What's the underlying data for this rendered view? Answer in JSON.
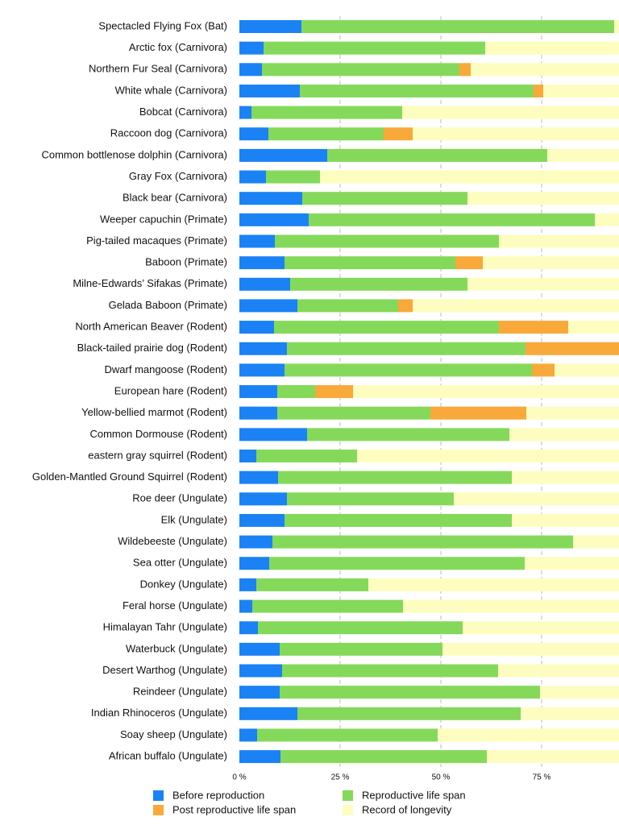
{
  "chart_data": {
    "type": "stacked-barh",
    "categories": [
      "Spectacled Flying Fox (Bat)",
      "Arctic fox (Carnivora)",
      "Northern Fur Seal (Carnivora)",
      "White whale (Carnivora)",
      "Bobcat (Carnivora)",
      "Raccoon dog (Carnivora)",
      "Common bottlenose dolphin (Carnivora)",
      "Gray Fox (Carnivora)",
      "Black bear (Carnivora)",
      "Weeper capuchin (Primate)",
      "Pig-tailed macaques (Primate)",
      "Baboon (Primate)",
      "Milne-Edwards’ Sifakas (Primate)",
      "Gelada Baboon (Primate)",
      "North American Beaver (Rodent)",
      "Black-tailed prairie dog (Rodent)",
      "Dwarf mangoose (Rodent)",
      "European hare (Rodent)",
      "Yellow-bellied marmot (Rodent)",
      "Common Dormouse (Rodent)",
      "eastern gray squirrel (Rodent)",
      "Golden-Mantled Ground Squirrel (Rodent)",
      "Roe deer (Ungulate)",
      "Elk (Ungulate)",
      "Wildebeeste (Ungulate)",
      "Sea otter (Ungulate)",
      "Donkey (Ungulate)",
      "Feral horse (Ungulate)",
      "Himalayan Tahr (Ungulate)",
      "Waterbuck (Ungulate)",
      "Desert Warthog (Ungulate)",
      "Reindeer (Ungulate)",
      "Indian Rhinoceros (Ungulate)",
      "Soay sheep (Ungulate)",
      "African buffalo (Ungulate)"
    ],
    "series": [
      {
        "name": "Before reproduction",
        "color": "#1a82f5",
        "values": [
          15.4,
          6.0,
          5.6,
          15.0,
          3.0,
          7.2,
          21.8,
          6.6,
          15.6,
          17.2,
          8.8,
          11.2,
          12.6,
          14.4,
          8.6,
          11.8,
          11.2,
          9.4,
          9.4,
          16.8,
          4.2,
          9.6,
          11.8,
          11.2,
          8.2,
          7.4,
          4.2,
          3.2,
          4.6,
          10.0,
          10.6,
          10.0,
          14.4,
          4.4,
          10.2
        ]
      },
      {
        "name": "Reproductive life span",
        "color": "#85d95a",
        "values": [
          77.6,
          55.0,
          49.0,
          58.0,
          37.4,
          28.6,
          54.6,
          13.4,
          41.0,
          71.0,
          55.6,
          42.4,
          44.0,
          25.0,
          55.8,
          59.2,
          61.4,
          9.4,
          38.0,
          50.2,
          25.0,
          58.0,
          41.4,
          56.4,
          74.6,
          63.4,
          27.8,
          37.4,
          50.8,
          40.4,
          53.6,
          64.6,
          55.4,
          44.8,
          51.2
        ]
      },
      {
        "name": "Post reproductive life span",
        "color": "#f8a93a",
        "values": [
          0,
          0,
          2.8,
          2.4,
          0,
          7.2,
          0,
          0,
          0,
          0,
          0,
          6.8,
          0,
          3.6,
          17.2,
          29.0,
          5.6,
          9.4,
          23.8,
          0,
          0,
          0,
          0,
          0,
          0,
          0,
          0,
          0,
          0,
          0,
          0,
          0,
          0,
          0,
          0
        ]
      },
      {
        "name": "Record of longevity",
        "color": "#fefdc0",
        "values": [
          7.0,
          39.0,
          42.6,
          24.6,
          59.6,
          57.0,
          23.6,
          80.0,
          43.4,
          11.8,
          35.6,
          39.6,
          43.4,
          57.0,
          18.4,
          0,
          21.8,
          71.8,
          28.8,
          33.0,
          70.8,
          32.4,
          46.8,
          32.4,
          17.2,
          29.2,
          68.0,
          59.4,
          44.6,
          49.6,
          35.8,
          25.4,
          30.2,
          50.8,
          38.6
        ]
      }
    ],
    "xlim": [
      0,
      94.2
    ],
    "xticks": [
      {
        "value": 0,
        "label": "0 %"
      },
      {
        "value": 25,
        "label": "25 %"
      },
      {
        "value": 50,
        "label": "50 %"
      },
      {
        "value": 75,
        "label": "75 %"
      }
    ],
    "grid": true
  }
}
